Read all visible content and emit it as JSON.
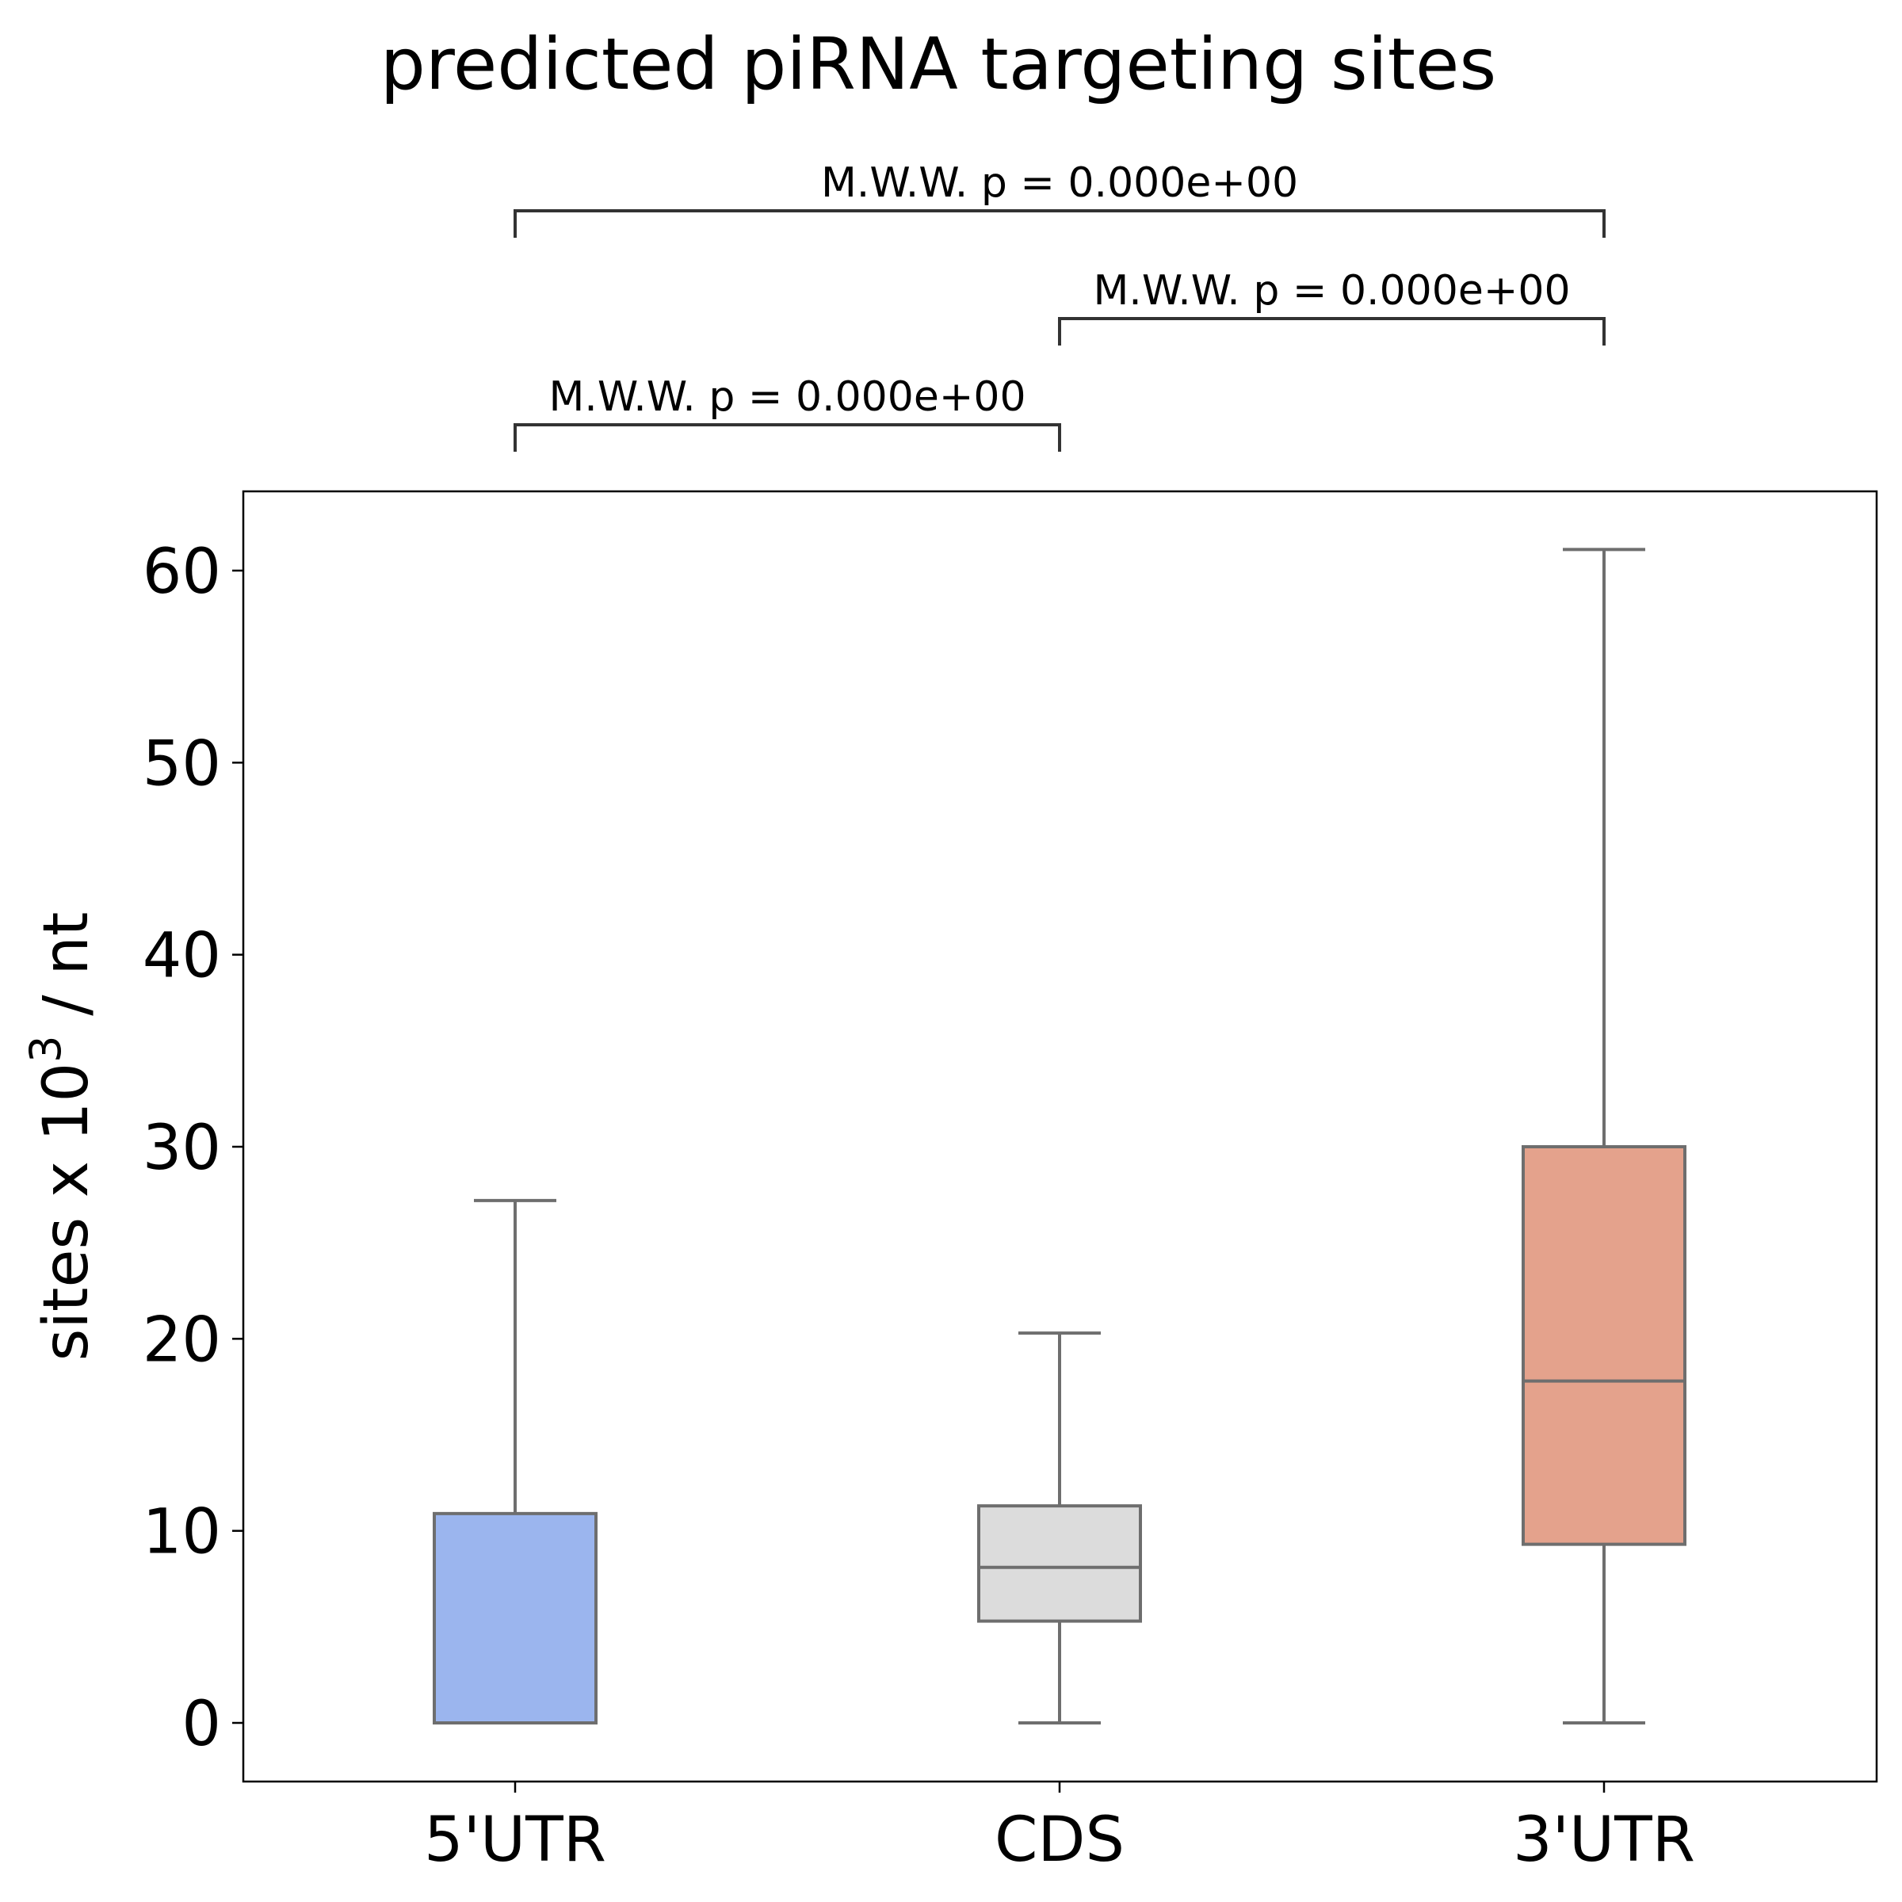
{
  "chart_data": {
    "type": "box",
    "title": "predicted piRNA targeting sites",
    "ylabel": {
      "main": "sites x 10",
      "superscript": "3",
      "suffix": " / nt"
    },
    "xlabel": "",
    "ylim": [
      -3,
      64
    ],
    "yticks": [
      0,
      10,
      20,
      30,
      40,
      50,
      60
    ],
    "grid": false,
    "legend": "none",
    "categories": [
      "5'UTR",
      "CDS",
      "3'UTR"
    ],
    "boxes": [
      {
        "category": "5'UTR",
        "whisker_low": 0,
        "q1": 0,
        "median": 0,
        "q3": 10.9,
        "whisker_high": 27.2,
        "color": "#9bb5ee"
      },
      {
        "category": "CDS",
        "whisker_low": 0,
        "q1": 5.3,
        "median": 8.1,
        "q3": 11.3,
        "whisker_high": 20.3,
        "color": "#dcdcdc"
      },
      {
        "category": "3'UTR",
        "whisker_low": 0,
        "q1": 9.3,
        "median": 17.8,
        "q3": 30.0,
        "whisker_high": 61.1,
        "color": "#e4a28c"
      }
    ],
    "annotations": [
      {
        "from": 0,
        "to": 2,
        "level": 2,
        "text": "M.W.W. p = 0.000e+00"
      },
      {
        "from": 1,
        "to": 2,
        "level": 1,
        "text": "M.W.W. p = 0.000e+00"
      },
      {
        "from": 0,
        "to": 1,
        "level": 0,
        "text": "M.W.W. p = 0.000e+00"
      }
    ],
    "box_edge_color": "#6e6e6e",
    "bracket_color": "#333333"
  }
}
